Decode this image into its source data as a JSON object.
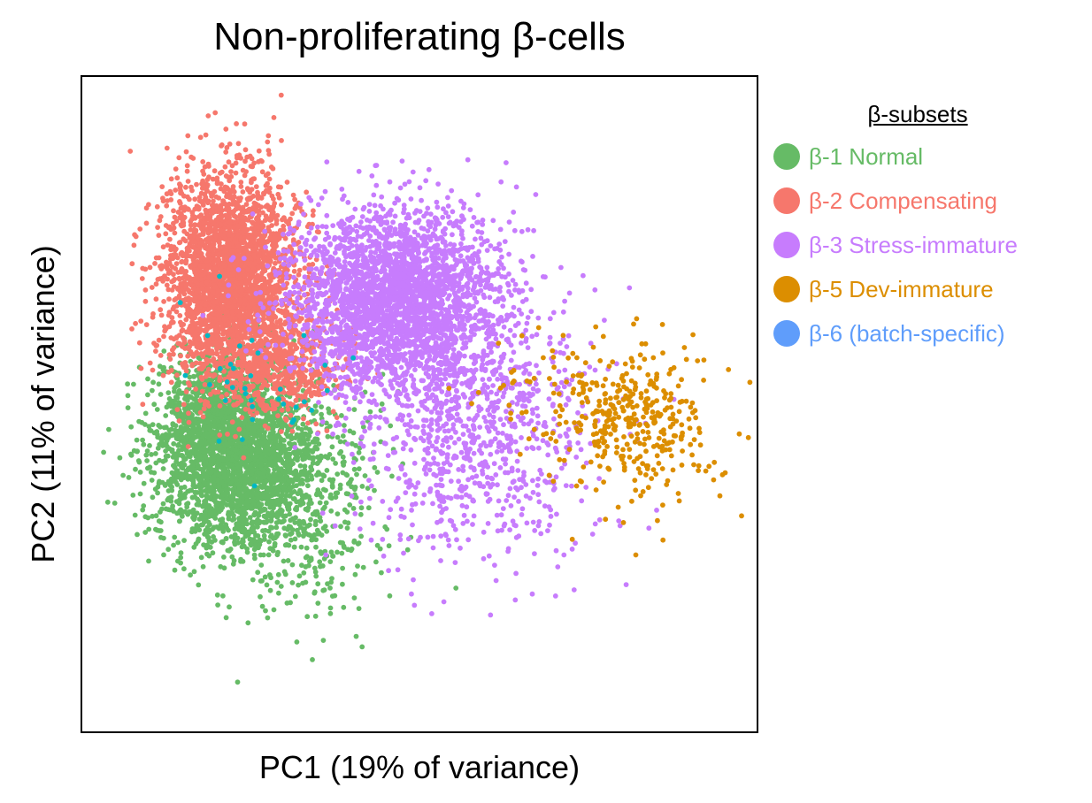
{
  "chart_data": {
    "type": "scatter",
    "title": "Non-proliferating β-cells",
    "xlabel": "PC1 (19% of variance)",
    "ylabel": "PC2 (11% of variance)",
    "xlim": [
      0,
      100
    ],
    "ylim": [
      0,
      100
    ],
    "ticks": "none",
    "grid": false,
    "legend": {
      "title": "β-subsets",
      "placement": "right"
    },
    "series": [
      {
        "name": "β-1 Normal",
        "color": "#66bb66",
        "clusters": [
          {
            "center": [
              23,
              42
            ],
            "spread": [
              6,
              7
            ],
            "n": 2600
          },
          {
            "center": [
              33,
              34
            ],
            "spread": [
              6,
              9
            ],
            "n": 380
          },
          {
            "center": [
              18,
              50
            ],
            "spread": [
              3,
              4
            ],
            "n": 300
          }
        ]
      },
      {
        "name": "β-2 Compensating",
        "color": "#f6776c",
        "clusters": [
          {
            "center": [
              22,
              69
            ],
            "spread": [
              5,
              8
            ],
            "n": 2800
          },
          {
            "center": [
              30,
              56
            ],
            "spread": [
              5,
              4
            ],
            "n": 500
          }
        ]
      },
      {
        "name": "β-3 Stress-immature",
        "color": "#c77cfd",
        "clusters": [
          {
            "center": [
              46,
              66
            ],
            "spread": [
              8,
              7
            ],
            "n": 2800
          },
          {
            "center": [
              58,
              46
            ],
            "spread": [
              9,
              10
            ],
            "n": 900
          }
        ]
      },
      {
        "name": "β-5 Dev-immature",
        "color": "#dc8e00",
        "clusters": [
          {
            "center": [
              82,
              46
            ],
            "spread": [
              6,
              6
            ],
            "n": 340
          },
          {
            "center": [
              70,
              53
            ],
            "spread": [
              7,
              4
            ],
            "n": 60
          }
        ]
      },
      {
        "name": "β-6 (batch-specific)",
        "color": "#5f9dfb",
        "accent_color": "#00b8c4",
        "clusters": [
          {
            "center": [
              26,
              53
            ],
            "spread": [
              6,
              7
            ],
            "n": 35
          }
        ]
      }
    ]
  }
}
